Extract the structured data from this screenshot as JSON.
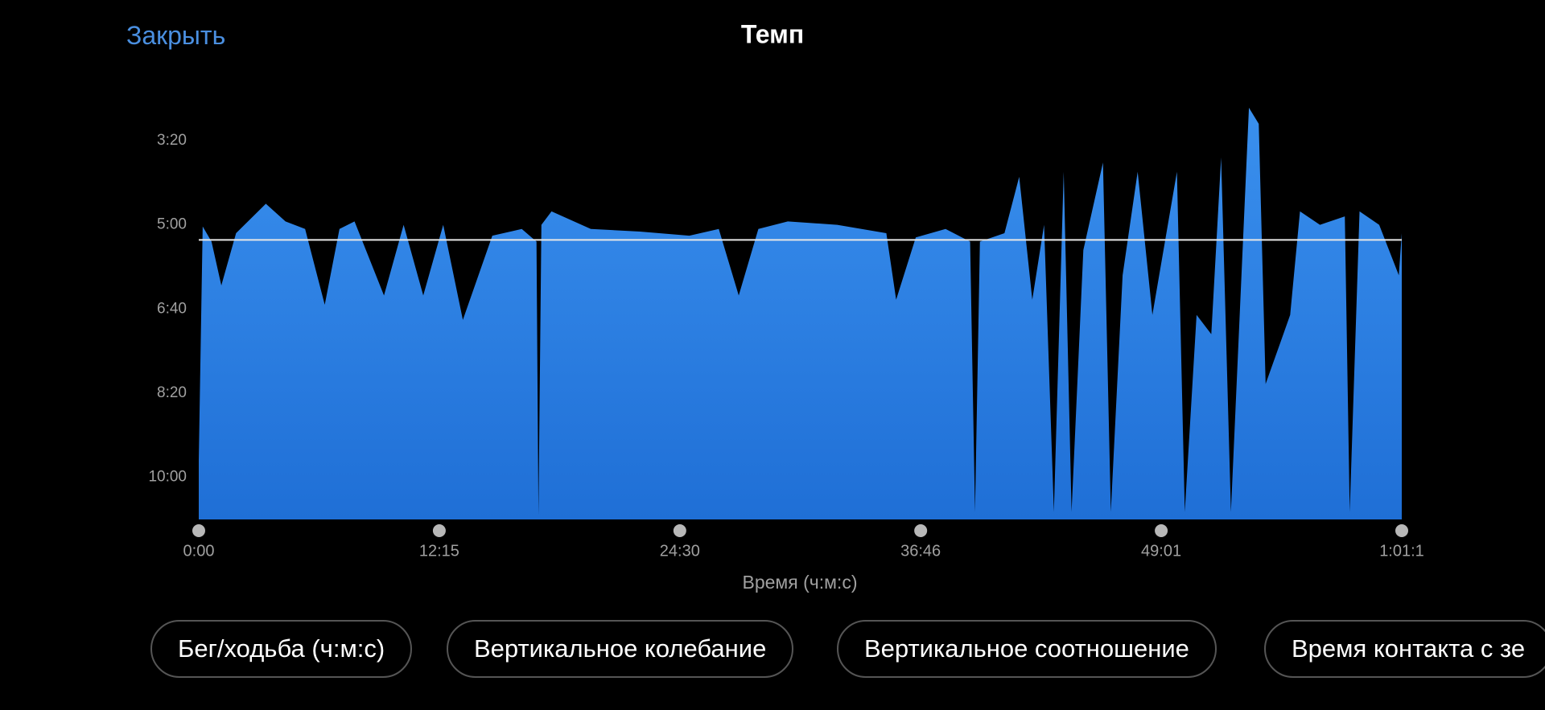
{
  "close_button": "Закрыть",
  "chart_data": {
    "type": "area",
    "title": "Темп",
    "x_label": "Время (ч:м:с)",
    "color": "#2f86e8",
    "reference_color": "#e8e8e8",
    "reference_line": 318,
    "xlim": [
      0,
      3676
    ],
    "ylim": [
      650,
      160
    ],
    "xticks": [
      {
        "value": 0,
        "label": "0:00"
      },
      {
        "value": 735,
        "label": "12:15"
      },
      {
        "value": 1470,
        "label": "24:30"
      },
      {
        "value": 2206,
        "label": "36:46"
      },
      {
        "value": 2941,
        "label": "49:01"
      },
      {
        "value": 3676,
        "label": "1:01:1"
      }
    ],
    "yticks": [
      {
        "value": 200,
        "label": "3:20"
      },
      {
        "value": 300,
        "label": "5:00"
      },
      {
        "value": 400,
        "label": "6:40"
      },
      {
        "value": 500,
        "label": "8:20"
      },
      {
        "value": 600,
        "label": "10:00"
      }
    ],
    "x": [
      0,
      12,
      39,
      69,
      114,
      205,
      265,
      325,
      385,
      430,
      476,
      566,
      626,
      686,
      747,
      807,
      897,
      987,
      1032,
      1038,
      1047,
      1078,
      1198,
      1348,
      1499,
      1589,
      1650,
      1710,
      1800,
      1951,
      2101,
      2131,
      2191,
      2282,
      2357,
      2372,
      2387,
      2462,
      2507,
      2547,
      2583,
      2613,
      2643,
      2667,
      2703,
      2763,
      2787,
      2823,
      2869,
      2914,
      2989,
      3013,
      3049,
      3094,
      3124,
      3154,
      3209,
      3239,
      3260,
      3305,
      3335,
      3365,
      3426,
      3502,
      3517,
      3547,
      3607,
      3667,
      3676
    ],
    "values": [
      580,
      302,
      320,
      372,
      310,
      275,
      296,
      305,
      395,
      305,
      296,
      384,
      300,
      384,
      300,
      413,
      313,
      305,
      320,
      645,
      300,
      284,
      305,
      308,
      313,
      305,
      384,
      305,
      296,
      300,
      310,
      389,
      315,
      305,
      320,
      641,
      320,
      310,
      243,
      389,
      300,
      641,
      237,
      641,
      330,
      226,
      641,
      360,
      237,
      407,
      237,
      641,
      407,
      430,
      220,
      641,
      161,
      180,
      489,
      440,
      407,
      284,
      300,
      290,
      641,
      284,
      300,
      360,
      310
    ]
  },
  "tabs": [
    "Бег/ходьба (ч:м:с)",
    "Вертикальное колебание",
    "Вертикальное соотношение",
    "Время контакта с зе"
  ]
}
